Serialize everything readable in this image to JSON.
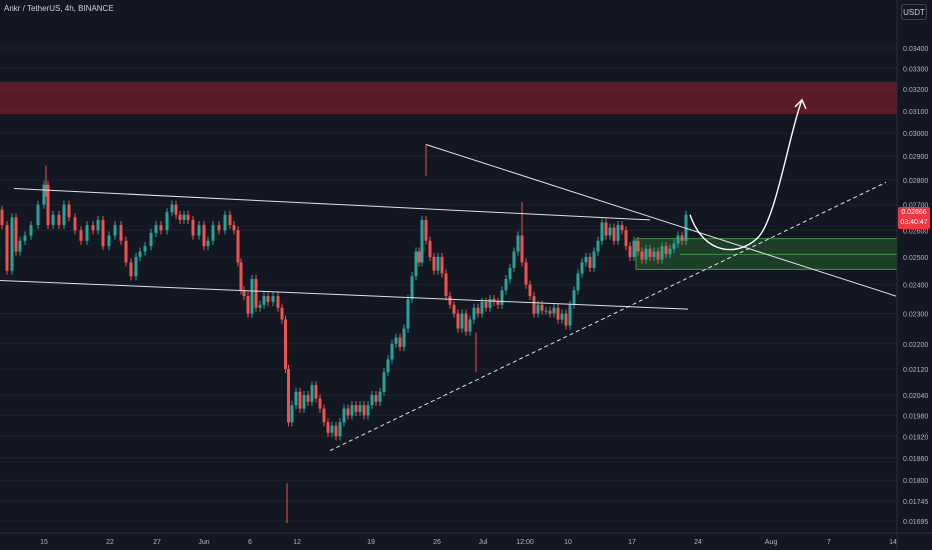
{
  "header": {
    "title": "Ankr / TetherUS, 4h, BINANCE",
    "currency": "USDT"
  },
  "price_tag": {
    "price": "0.02666",
    "countdown": "03:40:47"
  },
  "colors": {
    "background": "#131722",
    "up": "#26a69a",
    "down": "#ef5350",
    "resistance_zone": "rgba(178,34,52,0.45)",
    "support_zone": "rgba(46,125,50,0.40)",
    "trendline": "#e0e3eb",
    "price_tag": "#f23645"
  },
  "chart_data": {
    "type": "candlestick",
    "y_axis": {
      "scale": "log",
      "ticks": [
        "0.03400",
        "0.03300",
        "0.03200",
        "0.03100",
        "0.03000",
        "0.02900",
        "0.02800",
        "0.02700",
        "0.02600",
        "0.02500",
        "0.02400",
        "0.02300",
        "0.02200",
        "0.02120",
        "0.02040",
        "0.01980",
        "0.01920",
        "0.01860",
        "0.01800",
        "0.01745",
        "0.01695"
      ],
      "range": [
        0.0168,
        0.0345
      ]
    },
    "x_axis": {
      "ticks": [
        "15",
        "22",
        "27",
        "Jun",
        "6",
        "12",
        "19",
        "26",
        "Jul",
        "12:00",
        "10",
        "17",
        "24",
        "Aug",
        "7",
        "14"
      ]
    },
    "price_path": [
      [
        0,
        0.0268
      ],
      [
        4,
        0.0262
      ],
      [
        10,
        0.0245
      ],
      [
        14,
        0.0265
      ],
      [
        18,
        0.0252
      ],
      [
        22,
        0.0256
      ],
      [
        28,
        0.0258
      ],
      [
        34,
        0.0262
      ],
      [
        42,
        0.027
      ],
      [
        46,
        0.0278
      ],
      [
        50,
        0.0262
      ],
      [
        56,
        0.0266
      ],
      [
        62,
        0.0262
      ],
      [
        66,
        0.027
      ],
      [
        72,
        0.0265
      ],
      [
        78,
        0.026
      ],
      [
        84,
        0.0256
      ],
      [
        90,
        0.0262
      ],
      [
        96,
        0.026
      ],
      [
        100,
        0.0264
      ],
      [
        106,
        0.0254
      ],
      [
        112,
        0.0258
      ],
      [
        118,
        0.0262
      ],
      [
        124,
        0.0256
      ],
      [
        128,
        0.0248
      ],
      [
        134,
        0.0243
      ],
      [
        138,
        0.025
      ],
      [
        142,
        0.0252
      ],
      [
        148,
        0.0254
      ],
      [
        154,
        0.0259
      ],
      [
        158,
        0.0262
      ],
      [
        164,
        0.026
      ],
      [
        170,
        0.0267
      ],
      [
        174,
        0.027
      ],
      [
        178,
        0.0266
      ],
      [
        182,
        0.0264
      ],
      [
        186,
        0.0266
      ],
      [
        190,
        0.0264
      ],
      [
        196,
        0.0258
      ],
      [
        202,
        0.0262
      ],
      [
        206,
        0.0254
      ],
      [
        210,
        0.0256
      ],
      [
        216,
        0.0262
      ],
      [
        222,
        0.026
      ],
      [
        228,
        0.0266
      ],
      [
        232,
        0.0262
      ],
      [
        236,
        0.026
      ],
      [
        240,
        0.0248
      ],
      [
        242,
        0.0238
      ],
      [
        246,
        0.0236
      ],
      [
        250,
        0.023
      ],
      [
        254,
        0.0242
      ],
      [
        258,
        0.0232
      ],
      [
        262,
        0.0233
      ],
      [
        266,
        0.0236
      ],
      [
        270,
        0.0234
      ],
      [
        276,
        0.0236
      ],
      [
        280,
        0.0232
      ],
      [
        284,
        0.0228
      ],
      [
        287,
        0.0212
      ],
      [
        290,
        0.0196
      ],
      [
        294,
        0.0201
      ],
      [
        298,
        0.0205
      ],
      [
        302,
        0.02
      ],
      [
        306,
        0.0204
      ],
      [
        310,
        0.0202
      ],
      [
        314,
        0.0207
      ],
      [
        318,
        0.0203
      ],
      [
        322,
        0.02
      ],
      [
        326,
        0.0196
      ],
      [
        330,
        0.0193
      ],
      [
        334,
        0.0195
      ],
      [
        338,
        0.0192
      ],
      [
        342,
        0.0196
      ],
      [
        346,
        0.02
      ],
      [
        350,
        0.0198
      ],
      [
        354,
        0.0201
      ],
      [
        358,
        0.0199
      ],
      [
        362,
        0.0201
      ],
      [
        366,
        0.0198
      ],
      [
        370,
        0.0201
      ],
      [
        374,
        0.0204
      ],
      [
        378,
        0.0202
      ],
      [
        382,
        0.0205
      ],
      [
        386,
        0.0211
      ],
      [
        390,
        0.0215
      ],
      [
        394,
        0.022
      ],
      [
        398,
        0.0222
      ],
      [
        402,
        0.0219
      ],
      [
        406,
        0.0225
      ],
      [
        410,
        0.0235
      ],
      [
        414,
        0.0243
      ],
      [
        418,
        0.0252
      ],
      [
        420,
        0.0248
      ],
      [
        424,
        0.0264
      ],
      [
        428,
        0.0256
      ],
      [
        432,
        0.025
      ],
      [
        436,
        0.0245
      ],
      [
        440,
        0.025
      ],
      [
        444,
        0.0244
      ],
      [
        448,
        0.0236
      ],
      [
        452,
        0.0233
      ],
      [
        456,
        0.023
      ],
      [
        460,
        0.0225
      ],
      [
        464,
        0.023
      ],
      [
        468,
        0.0224
      ],
      [
        472,
        0.0228
      ],
      [
        476,
        0.0232
      ],
      [
        480,
        0.023
      ],
      [
        484,
        0.0234
      ],
      [
        488,
        0.0232
      ],
      [
        492,
        0.0235
      ],
      [
        496,
        0.0234
      ],
      [
        500,
        0.0233
      ],
      [
        504,
        0.0238
      ],
      [
        508,
        0.0242
      ],
      [
        512,
        0.0246
      ],
      [
        516,
        0.0252
      ],
      [
        520,
        0.0258
      ],
      [
        524,
        0.0248
      ],
      [
        528,
        0.024
      ],
      [
        532,
        0.0236
      ],
      [
        536,
        0.023
      ],
      [
        540,
        0.0233
      ],
      [
        544,
        0.0231
      ],
      [
        548,
        0.0231
      ],
      [
        552,
        0.023
      ],
      [
        556,
        0.0232
      ],
      [
        560,
        0.0228
      ],
      [
        564,
        0.023
      ],
      [
        568,
        0.0226
      ],
      [
        572,
        0.0233
      ],
      [
        576,
        0.0238
      ],
      [
        580,
        0.0244
      ],
      [
        584,
        0.0248
      ],
      [
        588,
        0.025
      ],
      [
        592,
        0.0246
      ],
      [
        596,
        0.0252
      ],
      [
        600,
        0.0256
      ],
      [
        604,
        0.0263
      ],
      [
        608,
        0.0258
      ],
      [
        612,
        0.0261
      ],
      [
        616,
        0.0256
      ],
      [
        620,
        0.0262
      ],
      [
        624,
        0.026
      ],
      [
        628,
        0.0254
      ],
      [
        632,
        0.025
      ],
      [
        636,
        0.0256
      ],
      [
        640,
        0.0252
      ],
      [
        644,
        0.0249
      ],
      [
        648,
        0.0253
      ],
      [
        652,
        0.025
      ],
      [
        656,
        0.0252
      ],
      [
        660,
        0.0249
      ],
      [
        664,
        0.0254
      ],
      [
        668,
        0.0251
      ],
      [
        672,
        0.0253
      ],
      [
        676,
        0.0255
      ],
      [
        680,
        0.0258
      ],
      [
        684,
        0.0256
      ],
      [
        688,
        0.0266
      ]
    ],
    "spike_highs": [
      [
        46,
        0.0286
      ],
      [
        426,
        0.0295
      ],
      [
        522,
        0.0271
      ]
    ],
    "spike_lows": [
      [
        287,
        0.0169
      ],
      [
        476,
        0.0211
      ]
    ],
    "annotations": {
      "resistance_zone": [
        0.03085,
        0.03235
      ],
      "support_zone": [
        0.02455,
        0.02568
      ],
      "support_line": 0.0251,
      "descending_channel": [
        [
          [
            14,
            0.02765
          ],
          [
            650,
            0.0264
          ]
        ],
        [
          [
            0,
            0.02415
          ],
          [
            688,
            0.02315
          ]
        ]
      ],
      "wedge_upper": [
        [
          426,
          0.0295
        ],
        [
          896,
          0.0236
        ]
      ],
      "wedge_lower_dashed": [
        [
          330,
          0.0188
        ],
        [
          886,
          0.0279
        ]
      ],
      "projection_curve": "up from 0.0266 to 0.0315"
    }
  }
}
